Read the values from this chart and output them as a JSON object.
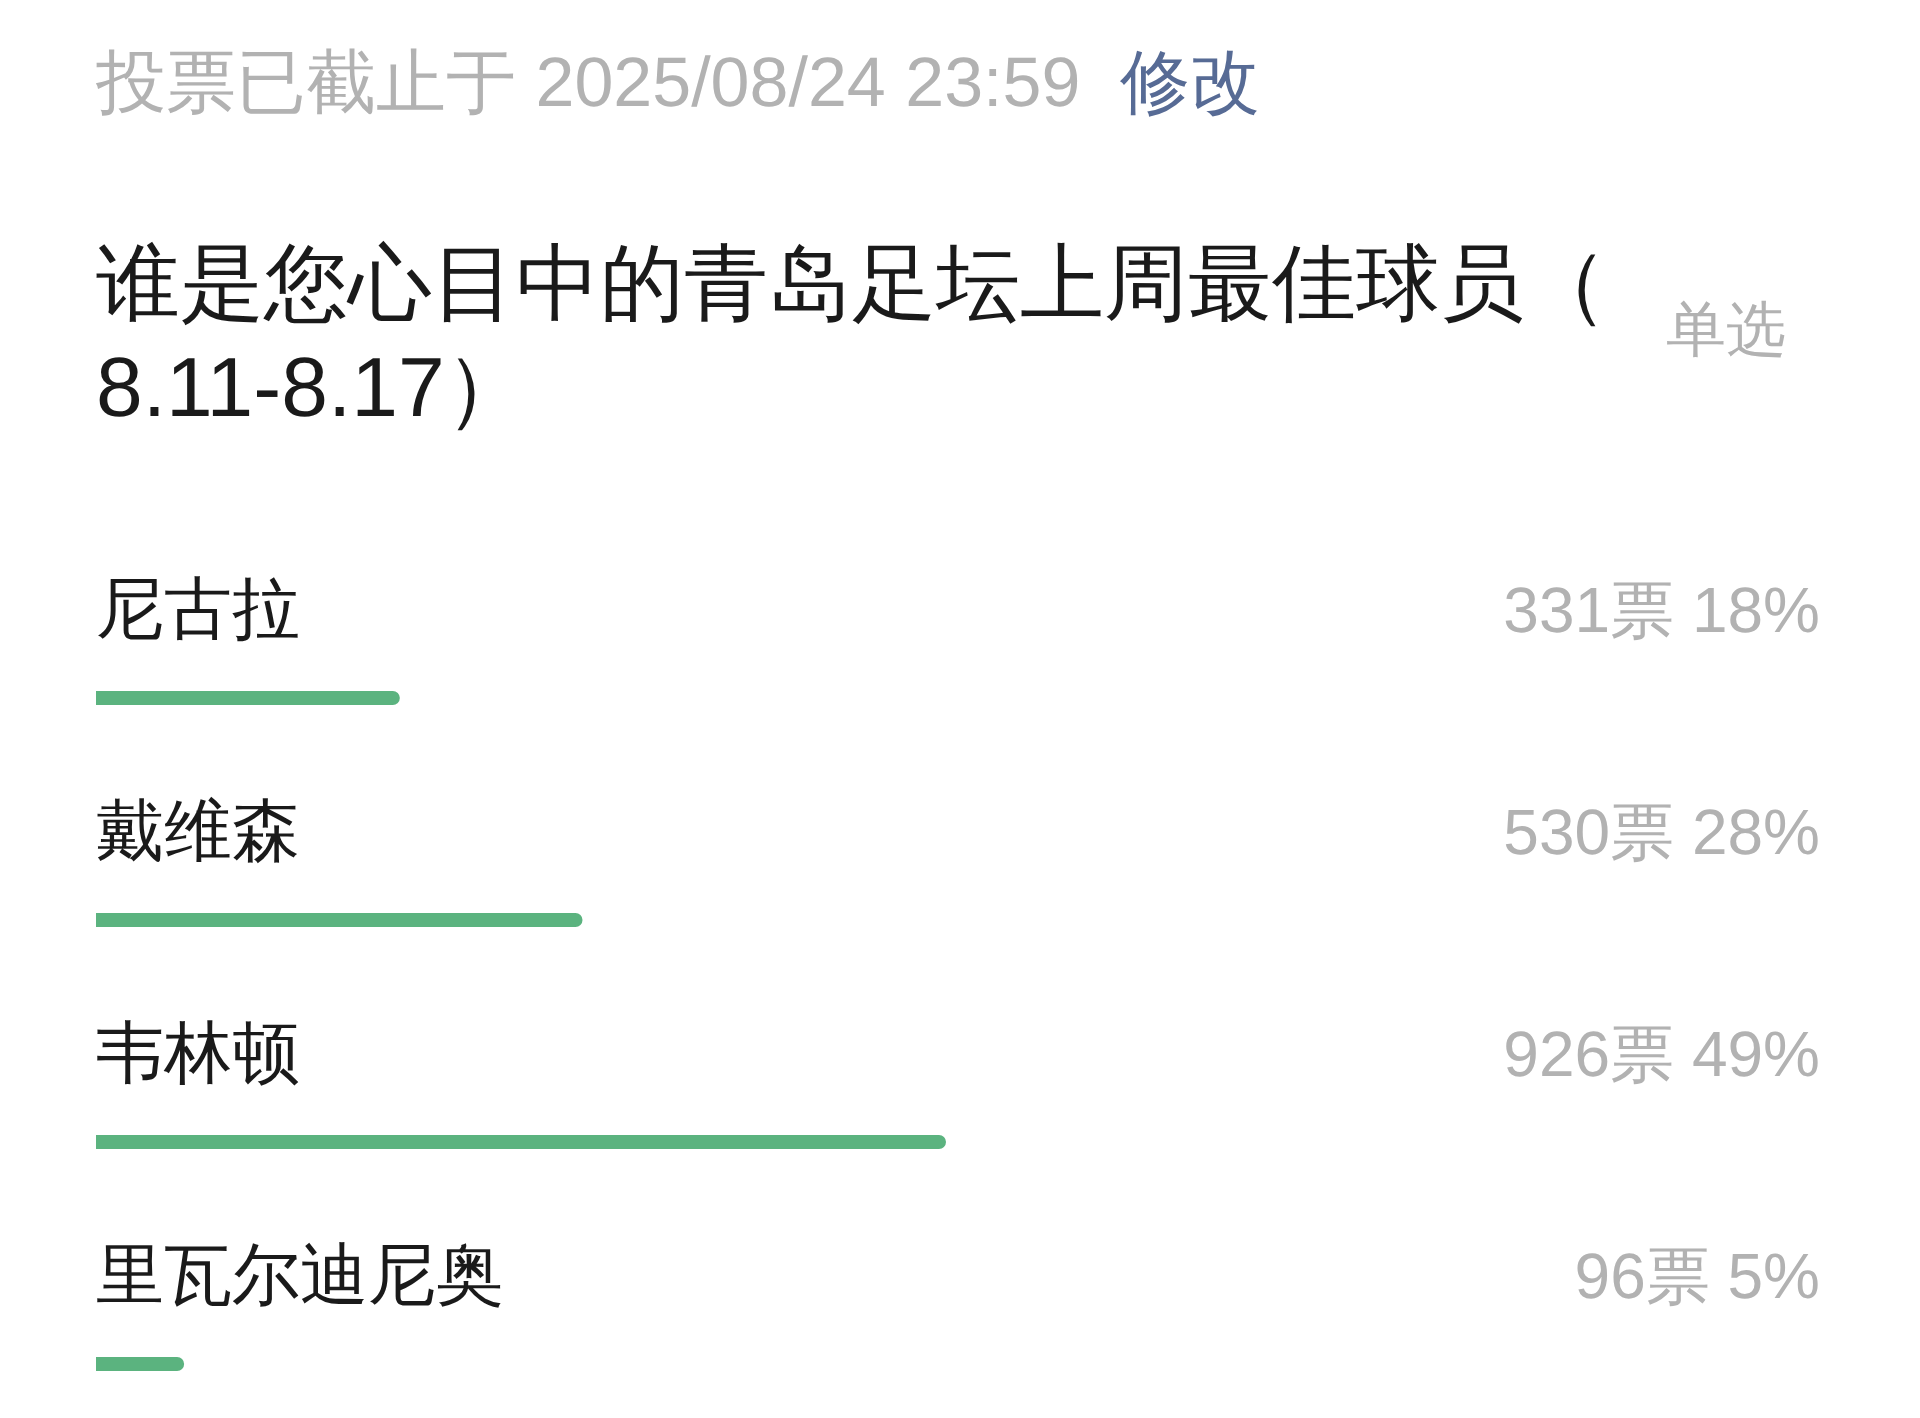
{
  "chart_data": {
    "type": "bar",
    "orientation": "horizontal",
    "title": "谁是您心目中的青岛足坛上周最佳球员（8.11-8.17）",
    "categories": [
      "尼古拉",
      "戴维森",
      "韦林顿",
      "里瓦尔迪尼奥"
    ],
    "values": [
      331,
      530,
      926,
      96
    ],
    "value_labels": [
      "331票 18%",
      "530票 28%",
      "926票 49%",
      "96票 5%"
    ],
    "color": "#5bb37f",
    "annotations": [
      "投票已截止于 2025/08/24 23:59",
      "修改",
      "单选"
    ]
  }
}
